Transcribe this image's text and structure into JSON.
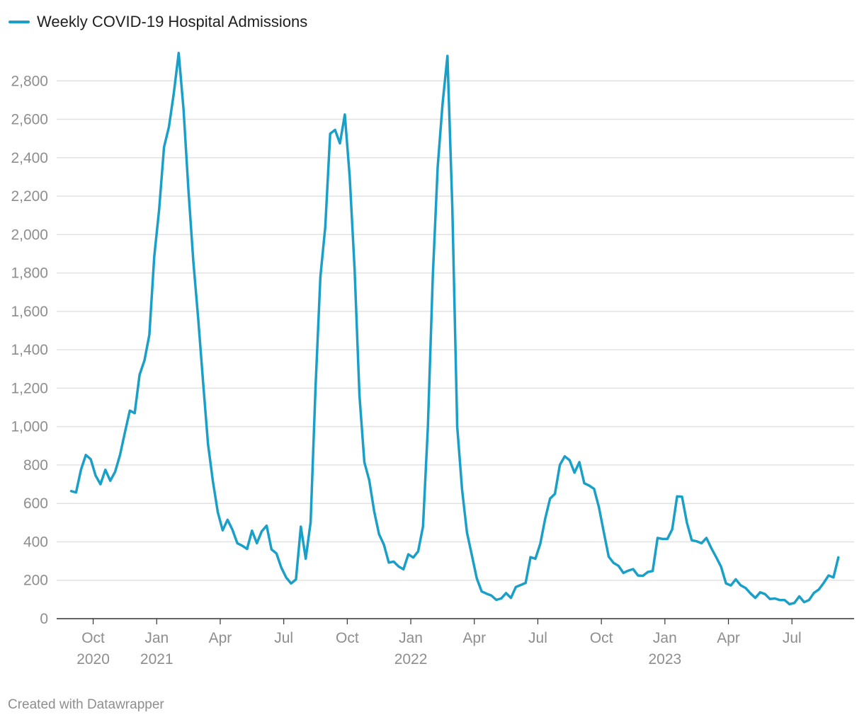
{
  "footer": "Created with Datawrapper",
  "colors": {
    "line": "#1aa0c8",
    "grid": "#e2e2e2",
    "axis": "#333333",
    "tick_text": "#8e8e8e"
  },
  "chart_data": {
    "type": "line",
    "title": "",
    "xlabel": "",
    "ylabel": "",
    "legend": "top-left",
    "ylim": [
      0,
      2950
    ],
    "yticks": [
      0,
      200,
      400,
      600,
      800,
      1000,
      1200,
      1400,
      1600,
      1800,
      2000,
      2200,
      2400,
      2600,
      2800
    ],
    "ytick_labels": [
      "0",
      "200",
      "400",
      "600",
      "800",
      "1,000",
      "1,200",
      "1,400",
      "1,600",
      "1,800",
      "2,000",
      "2,200",
      "2,400",
      "2,600",
      "2,800"
    ],
    "xlim_week": [
      -4,
      158
    ],
    "xticks": [
      {
        "week": 4.5,
        "label": "Oct",
        "year": "2020"
      },
      {
        "week": 17.5,
        "label": "Jan",
        "year": "2021"
      },
      {
        "week": 30.5,
        "label": "Apr",
        "year": ""
      },
      {
        "week": 43.5,
        "label": "Jul",
        "year": ""
      },
      {
        "week": 56.5,
        "label": "Oct",
        "year": ""
      },
      {
        "week": 69.5,
        "label": "Jan",
        "year": "2022"
      },
      {
        "week": 82.5,
        "label": "Apr",
        "year": ""
      },
      {
        "week": 95.5,
        "label": "Jul",
        "year": ""
      },
      {
        "week": 108.5,
        "label": "Oct",
        "year": ""
      },
      {
        "week": 121.5,
        "label": "Jan",
        "year": "2023"
      },
      {
        "week": 134.5,
        "label": "Apr",
        "year": ""
      },
      {
        "week": 147.5,
        "label": "Jul",
        "year": ""
      }
    ],
    "series": [
      {
        "name": "Weekly COVID-19 Hospital Admissions",
        "color": "#1aa0c8",
        "week_start": 0,
        "values": [
          664,
          657,
          775,
          852,
          830,
          745,
          700,
          775,
          718,
          765,
          853,
          970,
          1083,
          1070,
          1270,
          1345,
          1478,
          1885,
          2130,
          2455,
          2560,
          2735,
          2945,
          2650,
          2230,
          1860,
          1560,
          1230,
          910,
          715,
          555,
          460,
          515,
          463,
          393,
          380,
          363,
          458,
          393,
          455,
          484,
          360,
          340,
          266,
          214,
          183,
          204,
          479,
          312,
          502,
          1200,
          1780,
          2040,
          2525,
          2545,
          2475,
          2625,
          2300,
          1820,
          1160,
          815,
          720,
          560,
          440,
          385,
          292,
          297,
          272,
          257,
          335,
          318,
          350,
          480,
          1000,
          1780,
          2350,
          2680,
          2930,
          2140,
          1000,
          670,
          448,
          330,
          210,
          142,
          130,
          120,
          98,
          105,
          133,
          108,
          165,
          175,
          186,
          320,
          312,
          390,
          520,
          625,
          650,
          800,
          845,
          825,
          760,
          815,
          705,
          693,
          676,
          580,
          450,
          323,
          290,
          275,
          238,
          250,
          258,
          225,
          223,
          243,
          248,
          420,
          415,
          415,
          465,
          637,
          635,
          500,
          408,
          403,
          393,
          420,
          367,
          320,
          270,
          184,
          173,
          205,
          174,
          160,
          132,
          108,
          137,
          128,
          102,
          105,
          97,
          97,
          75,
          82,
          116,
          86,
          97,
          134,
          152,
          186,
          225,
          215,
          319
        ]
      }
    ]
  }
}
